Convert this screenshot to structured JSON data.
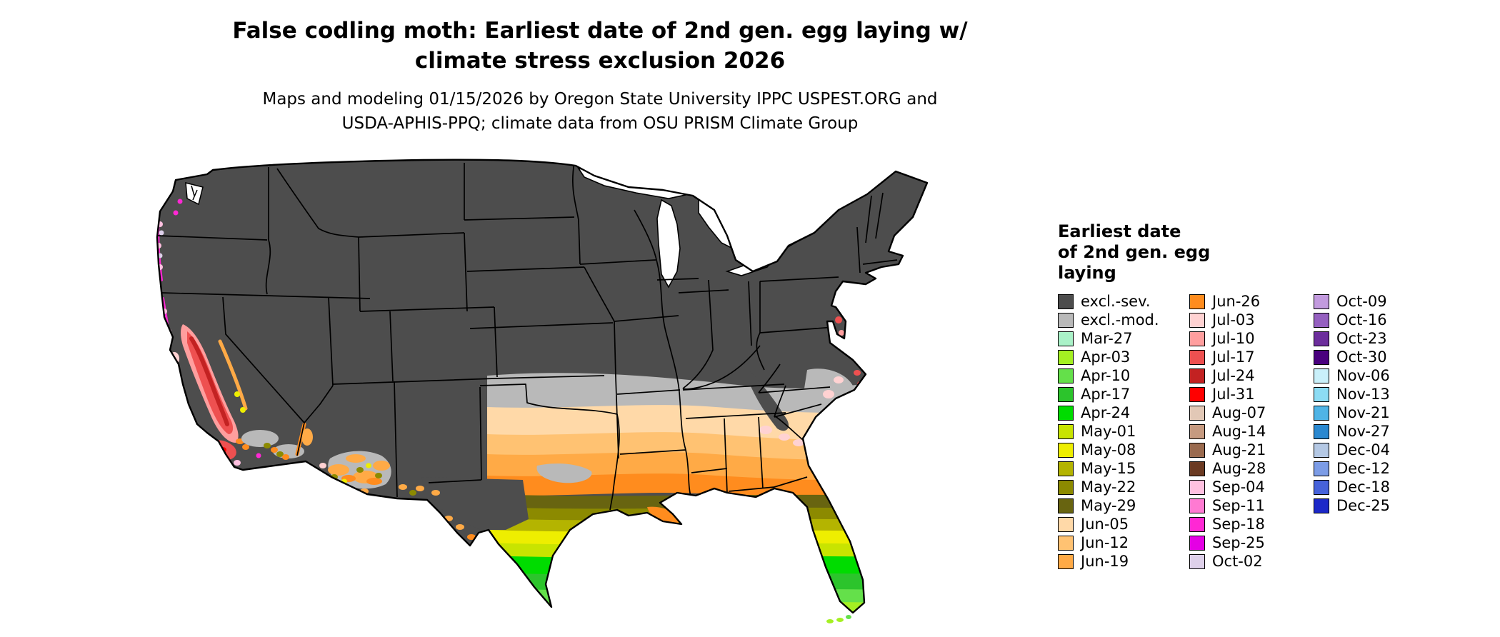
{
  "title": {
    "line1": "False codling moth: Earliest date of 2nd gen. egg laying w/",
    "line2": "climate stress exclusion 2026"
  },
  "subtitle": {
    "line1": "Maps and modeling 01/15/2026 by Oregon State University IPPC USPEST.ORG and",
    "line2": "USDA-APHIS-PPQ; climate data from OSU PRISM Climate Group"
  },
  "legend": {
    "title_lines": [
      "Earliest date",
      "of 2nd gen. egg",
      "laying"
    ],
    "columns": [
      {
        "items": [
          {
            "label": "excl.-sev.",
            "color_key": "exclSev"
          },
          {
            "label": "excl.-mod.",
            "color_key": "exclMod"
          },
          {
            "label": "Mar-27",
            "color_key": "mar27"
          },
          {
            "label": "Apr-03",
            "color_key": "apr03"
          },
          {
            "label": "Apr-10",
            "color_key": "apr10"
          },
          {
            "label": "Apr-17",
            "color_key": "apr17"
          },
          {
            "label": "Apr-24",
            "color_key": "apr24"
          },
          {
            "label": "May-01",
            "color_key": "may01"
          },
          {
            "label": "May-08",
            "color_key": "may08"
          },
          {
            "label": "May-15",
            "color_key": "may15"
          },
          {
            "label": "May-22",
            "color_key": "may22"
          },
          {
            "label": "May-29",
            "color_key": "may29"
          },
          {
            "label": "Jun-05",
            "color_key": "jun05"
          },
          {
            "label": "Jun-12",
            "color_key": "jun12"
          },
          {
            "label": "Jun-19",
            "color_key": "jun19"
          }
        ]
      },
      {
        "items": [
          {
            "label": "Jun-26",
            "color_key": "jun26"
          },
          {
            "label": "Jul-03",
            "color_key": "jul03"
          },
          {
            "label": "Jul-10",
            "color_key": "jul10"
          },
          {
            "label": "Jul-17",
            "color_key": "jul17"
          },
          {
            "label": "Jul-24",
            "color_key": "jul24"
          },
          {
            "label": "Jul-31",
            "color_key": "jul31"
          },
          {
            "label": "Aug-07",
            "color_key": "aug07"
          },
          {
            "label": "Aug-14",
            "color_key": "aug14"
          },
          {
            "label": "Aug-21",
            "color_key": "aug21"
          },
          {
            "label": "Aug-28",
            "color_key": "aug28"
          },
          {
            "label": "Sep-04",
            "color_key": "sep04"
          },
          {
            "label": "Sep-11",
            "color_key": "sep11"
          },
          {
            "label": "Sep-18",
            "color_key": "sep18"
          },
          {
            "label": "Sep-25",
            "color_key": "sep25"
          },
          {
            "label": "Oct-02",
            "color_key": "oct02"
          }
        ]
      },
      {
        "items": [
          {
            "label": "Oct-09",
            "color_key": "oct09"
          },
          {
            "label": "Oct-16",
            "color_key": "oct16"
          },
          {
            "label": "Oct-23",
            "color_key": "oct23"
          },
          {
            "label": "Oct-30",
            "color_key": "oct30"
          },
          {
            "label": "Nov-06",
            "color_key": "nov06"
          },
          {
            "label": "Nov-13",
            "color_key": "nov13"
          },
          {
            "label": "Nov-21",
            "color_key": "nov21"
          },
          {
            "label": "Nov-27",
            "color_key": "nov27"
          },
          {
            "label": "Dec-04",
            "color_key": "dec04"
          },
          {
            "label": "Dec-12",
            "color_key": "dec12"
          },
          {
            "label": "Dec-18",
            "color_key": "dec18"
          },
          {
            "label": "Dec-25",
            "color_key": "dec25"
          }
        ]
      }
    ]
  },
  "palette": {
    "exclSev": "#4d4d4d",
    "exclMod": "#b9b9b9",
    "mar27": "#aaf2c8",
    "apr03": "#a4f022",
    "apr10": "#64e04a",
    "apr17": "#2cc42c",
    "apr24": "#00dc00",
    "may01": "#c8e400",
    "may08": "#eeee00",
    "may15": "#b4b400",
    "may22": "#8c8a00",
    "may29": "#686410",
    "jun05": "#ffd9a8",
    "jun12": "#ffc272",
    "jun19": "#ffaa46",
    "jun26": "#ff8c1e",
    "jul03": "#ffd2d2",
    "jul10": "#ff9e9e",
    "jul17": "#ee5050",
    "jul24": "#c32222",
    "jul31": "#ff0000",
    "aug07": "#e2c8b6",
    "aug14": "#c69a80",
    "aug21": "#9a6a4e",
    "aug28": "#6b3a22",
    "sep04": "#ffc0e0",
    "sep11": "#ff7ad2",
    "sep18": "#ff28d4",
    "sep25": "#e400e4",
    "oct02": "#ded0ea",
    "oct09": "#c29ade",
    "oct16": "#9560c0",
    "oct23": "#6c2e9c",
    "oct30": "#49007e",
    "nov06": "#c9f0fa",
    "nov13": "#8cdcf4",
    "nov21": "#4fb4e6",
    "nov27": "#2a88d0",
    "dec04": "#b4c8e4",
    "dec12": "#7c9ce6",
    "dec18": "#4662da",
    "dec25": "#1c28c8"
  },
  "map": {
    "land_border_color": "#000000",
    "water_color": "#ffffff"
  }
}
